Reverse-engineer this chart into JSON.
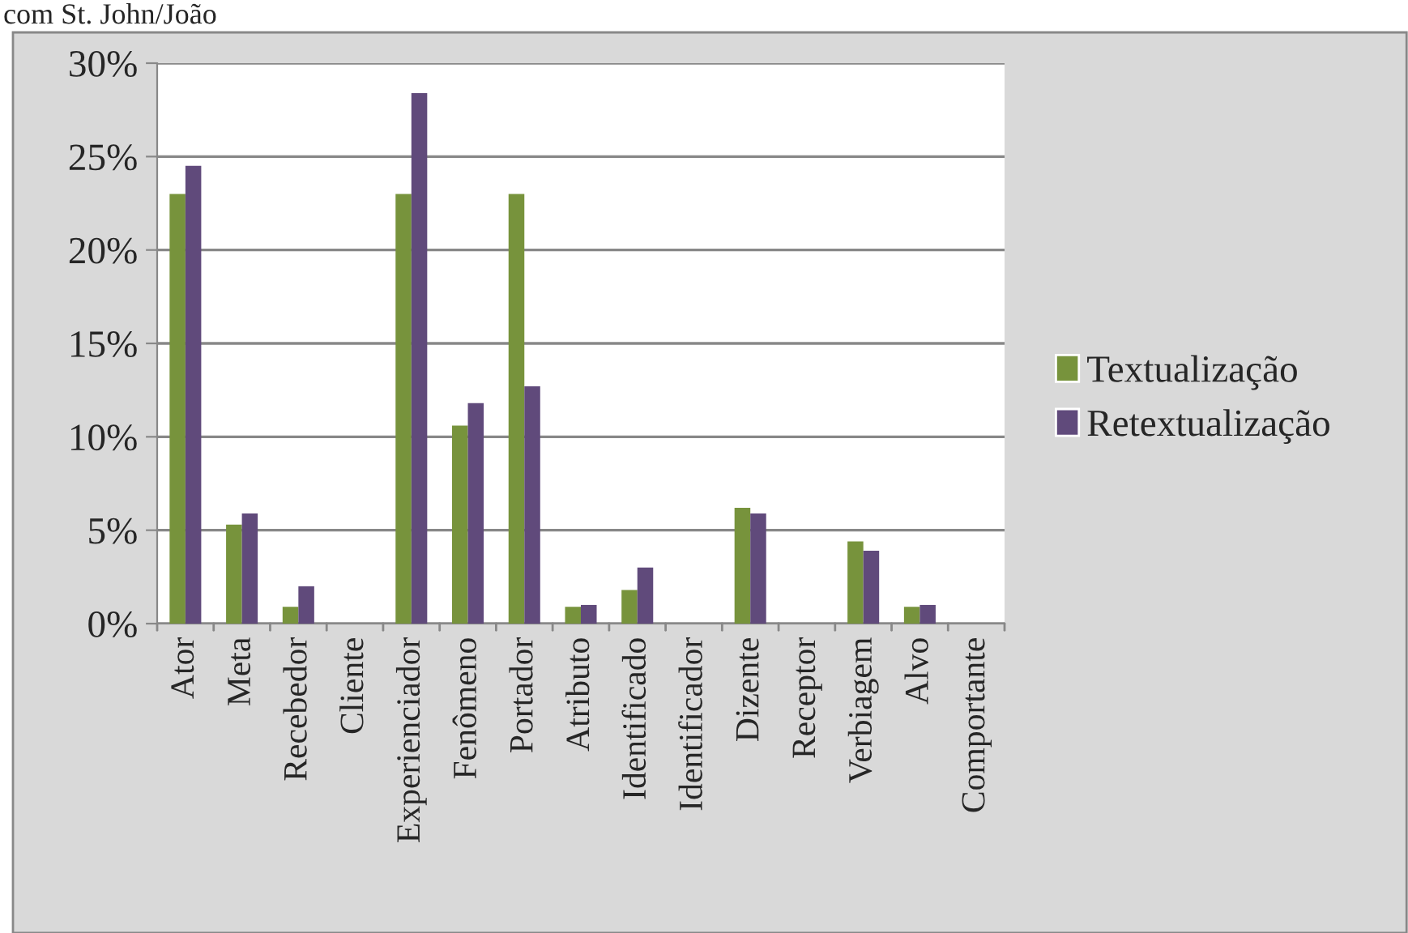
{
  "chart_data": {
    "type": "bar",
    "annotations": [
      "com St. John/João"
    ],
    "categories": [
      "Ator",
      "Meta",
      "Recebedor",
      "Cliente",
      "Experienciador",
      "Fenômeno",
      "Portador",
      "Atributo",
      "Identificado",
      "Identificador",
      "Dizente",
      "Receptor",
      "Verbiagem",
      "Alvo",
      "Comportante"
    ],
    "series": [
      {
        "name": "Textualização",
        "color": "#77933c",
        "values": [
          23,
          5.3,
          0.9,
          0,
          23,
          10.6,
          23,
          0.9,
          1.8,
          0,
          6.2,
          0,
          4.4,
          0.9,
          0
        ]
      },
      {
        "name": "Retextualização",
        "color": "#604a7b",
        "values": [
          24.5,
          5.9,
          2.0,
          0,
          28.4,
          11.8,
          12.7,
          1.0,
          3.0,
          0,
          5.9,
          0,
          3.9,
          1.0,
          0
        ]
      }
    ],
    "ylim": [
      0,
      30
    ],
    "yticks": [
      {
        "value": 0,
        "label": "0%"
      },
      {
        "value": 5,
        "label": "5%"
      },
      {
        "value": 10,
        "label": "10%"
      },
      {
        "value": 15,
        "label": "15%"
      },
      {
        "value": 20,
        "label": "20%"
      },
      {
        "value": 25,
        "label": "25%"
      },
      {
        "value": 30,
        "label": "30%"
      }
    ],
    "grid": "y",
    "legend": "right"
  }
}
